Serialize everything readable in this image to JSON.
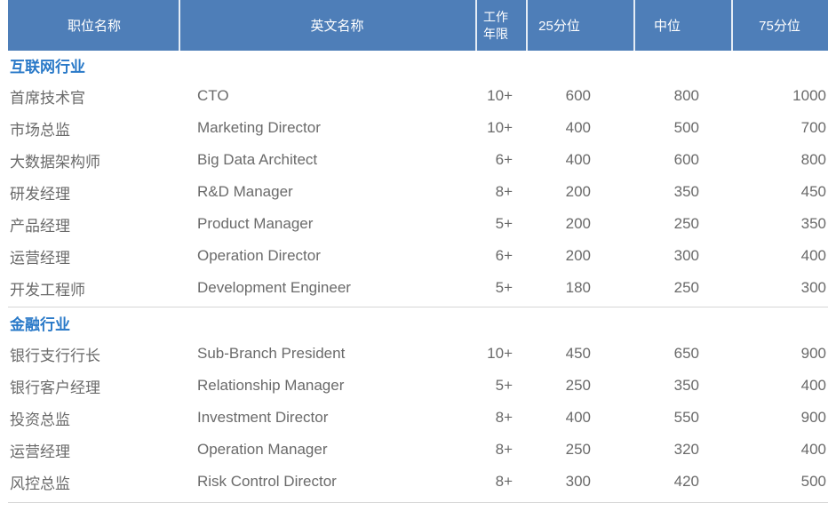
{
  "colors": {
    "header_bg": "#4E7EB8",
    "header_text": "#FFFFFF",
    "header_divider": "#E4ECF5",
    "section_label": "#2979C8",
    "body_text": "#6A6A6A",
    "divider": "#D6D6D6"
  },
  "table": {
    "headers": {
      "position_cn": "职位名称",
      "position_en": "英文名称",
      "years": "工作年限",
      "p25": "25分位",
      "median": "中位",
      "p75": "75分位"
    },
    "sections": [
      {
        "label": "互联网行业",
        "rows": [
          {
            "position_cn": "首席技术官",
            "position_en": "CTO",
            "years": "10+",
            "p25": "600",
            "median": "800",
            "p75": "1000"
          },
          {
            "position_cn": "市场总监",
            "position_en": "Marketing Director",
            "years": "10+",
            "p25": "400",
            "median": "500",
            "p75": "700"
          },
          {
            "position_cn": "大数据架构师",
            "position_en": "Big Data Architect",
            "years": "6+",
            "p25": "400",
            "median": "600",
            "p75": "800"
          },
          {
            "position_cn": "研发经理",
            "position_en": "R&D Manager",
            "years": "8+",
            "p25": "200",
            "median": "350",
            "p75": "450"
          },
          {
            "position_cn": "产品经理",
            "position_en": "Product Manager",
            "years": "5+",
            "p25": "200",
            "median": "250",
            "p75": "350"
          },
          {
            "position_cn": "运营经理",
            "position_en": "Operation Director",
            "years": "6+",
            "p25": "200",
            "median": "300",
            "p75": "400"
          },
          {
            "position_cn": "开发工程师",
            "position_en": "Development Engineer",
            "years": "5+",
            "p25": "180",
            "median": "250",
            "p75": "300"
          }
        ]
      },
      {
        "label": "金融行业",
        "rows": [
          {
            "position_cn": "银行支行行长",
            "position_en": "Sub-Branch President",
            "years": "10+",
            "p25": "450",
            "median": "650",
            "p75": "900"
          },
          {
            "position_cn": "银行客户经理",
            "position_en": "Relationship Manager",
            "years": "5+",
            "p25": "250",
            "median": "350",
            "p75": "400"
          },
          {
            "position_cn": "投资总监",
            "position_en": "Investment Director",
            "years": "8+",
            "p25": "400",
            "median": "550",
            "p75": "900"
          },
          {
            "position_cn": "运营经理",
            "position_en": "Operation Manager",
            "years": "8+",
            "p25": "250",
            "median": "320",
            "p75": "400"
          },
          {
            "position_cn": "风控总监",
            "position_en": "Risk Control Director",
            "years": "8+",
            "p25": "300",
            "median": "420",
            "p75": "500"
          }
        ]
      }
    ]
  }
}
